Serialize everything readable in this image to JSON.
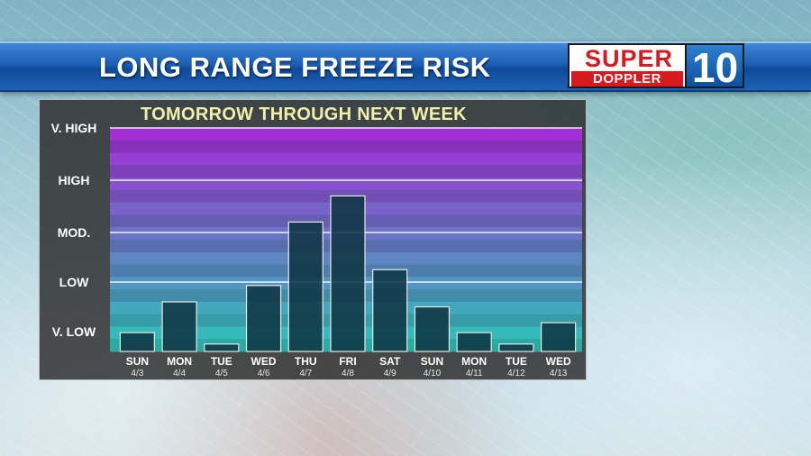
{
  "header": {
    "title": "LONG RANGE FREEZE RISK",
    "logo_top": "SUPER",
    "logo_bottom": "DOPPLER",
    "logo_number": "10"
  },
  "colors": {
    "band_top": "#a22fd6",
    "band_bottom": "#2fc2b8",
    "bar_fill": "#0f3544",
    "bar_stroke": "#e8e8e8",
    "title_text": "#f2f0a8"
  },
  "chart_data": {
    "type": "bar",
    "title": "TOMORROW THROUGH NEXT WEEK",
    "y_levels": [
      "V. LOW",
      "LOW",
      "MOD.",
      "HIGH",
      "V. HIGH"
    ],
    "ylim": [
      0,
      4.4
    ],
    "grid": true,
    "categories": [
      "SUN",
      "MON",
      "TUE",
      "WED",
      "THU",
      "FRI",
      "SAT",
      "SUN",
      "MON",
      "TUE",
      "WED"
    ],
    "dates": [
      "4/3",
      "4/4",
      "4/5",
      "4/6",
      "4/7",
      "4/8",
      "4/9",
      "4/10",
      "4/11",
      "4/12",
      "4/13"
    ],
    "values": [
      0.38,
      1.0,
      0.15,
      1.33,
      2.6,
      3.1,
      1.65,
      0.9,
      0.38,
      0.15,
      0.58
    ]
  }
}
